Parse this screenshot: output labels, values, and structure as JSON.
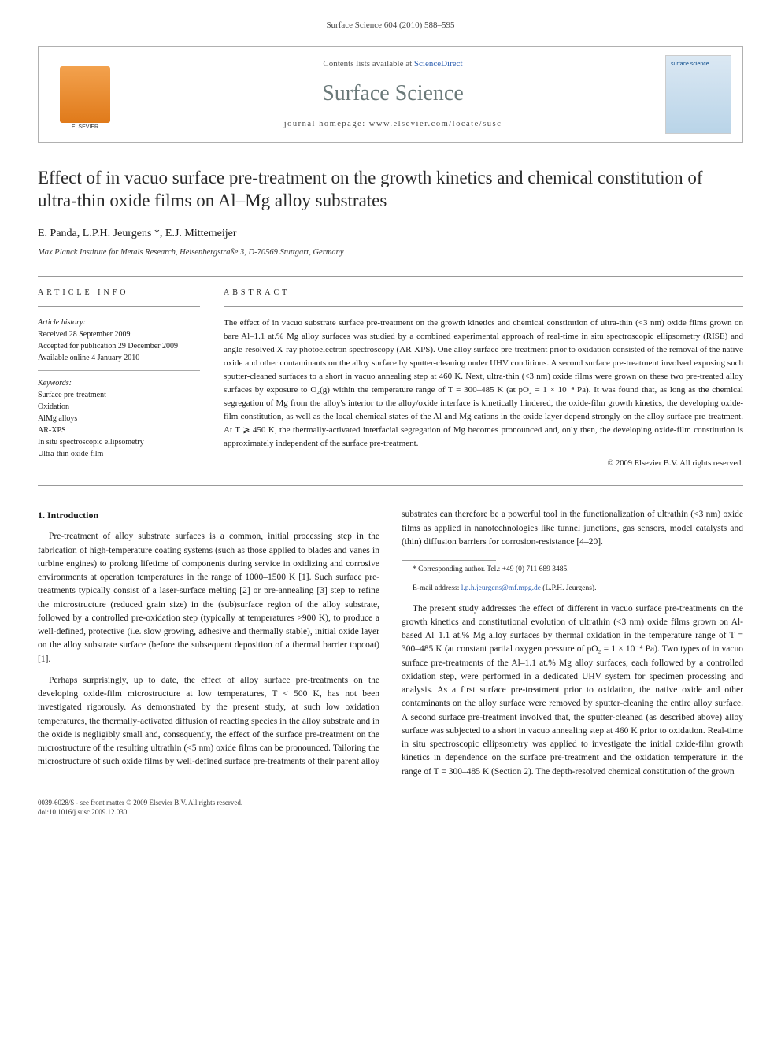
{
  "header": {
    "running_head": "Surface Science 604 (2010) 588–595"
  },
  "banner": {
    "contents_prefix": "Contents lists available at ",
    "contents_link": "ScienceDirect",
    "journal_name": "Surface Science",
    "homepage_label": "journal homepage: www.elsevier.com/locate/susc"
  },
  "article": {
    "title": "Effect of in vacuo surface pre-treatment on the growth kinetics and chemical constitution of ultra-thin oxide films on Al–Mg alloy substrates",
    "authors": "E. Panda, L.P.H. Jeurgens *, E.J. Mittemeijer",
    "affiliation": "Max Planck Institute for Metals Research, Heisenbergstraße 3, D-70569 Stuttgart, Germany"
  },
  "info": {
    "heading": "ARTICLE INFO",
    "history_label": "Article history:",
    "received": "Received 28 September 2009",
    "accepted": "Accepted for publication 29 December 2009",
    "online": "Available online 4 January 2010",
    "keywords_label": "Keywords:",
    "keywords": [
      "Surface pre-treatment",
      "Oxidation",
      "AlMg alloys",
      "AR-XPS",
      "In situ spectroscopic ellipsometry",
      "Ultra-thin oxide film"
    ]
  },
  "abstract": {
    "heading": "ABSTRACT",
    "text": "The effect of in vacuo substrate surface pre-treatment on the growth kinetics and chemical constitution of ultra-thin (<3 nm) oxide films grown on bare Al–1.1 at.% Mg alloy surfaces was studied by a combined experimental approach of real-time in situ spectroscopic ellipsometry (RISE) and angle-resolved X-ray photoelectron spectroscopy (AR-XPS). One alloy surface pre-treatment prior to oxidation consisted of the removal of the native oxide and other contaminants on the alloy surface by sputter-cleaning under UHV conditions. A second surface pre-treatment involved exposing such sputter-cleaned surfaces to a short in vacuo annealing step at 460 K. Next, ultra-thin (<3 nm) oxide films were grown on these two pre-treated alloy surfaces by exposure to O₂(g) within the temperature range of T = 300–485 K (at pO₂ = 1 × 10⁻⁴ Pa). It was found that, as long as the chemical segregation of Mg from the alloy's interior to the alloy/oxide interface is kinetically hindered, the oxide-film growth kinetics, the developing oxide-film constitution, as well as the local chemical states of the Al and Mg cations in the oxide layer depend strongly on the alloy surface pre-treatment. At T ⩾ 450 K, the thermally-activated interfacial segregation of Mg becomes pronounced and, only then, the developing oxide-film constitution is approximately independent of the surface pre-treatment.",
    "copyright": "© 2009 Elsevier B.V. All rights reserved."
  },
  "body": {
    "section1_head": "1. Introduction",
    "p1": "Pre-treatment of alloy substrate surfaces is a common, initial processing step in the fabrication of high-temperature coating systems (such as those applied to blades and vanes in turbine engines) to prolong lifetime of components during service in oxidizing and corrosive environments at operation temperatures in the range of 1000–1500 K [1]. Such surface pre-treatments typically consist of a laser-surface melting [2] or pre-annealing [3] step to refine the microstructure (reduced grain size) in the (sub)surface region of the alloy substrate, followed by a controlled pre-oxidation step (typically at temperatures >900 K), to produce a well-defined, protective (i.e. slow growing, adhesive and thermally stable), initial oxide layer on the alloy substrate surface (before the subsequent deposition of a thermal barrier topcoat) [1].",
    "p2": "Perhaps surprisingly, up to date, the effect of alloy surface pre-treatments on the developing oxide-film microstructure at low temperatures, T < 500 K, has not been investigated rigorously. As demonstrated by the present study, at such low oxidation temperatures, the thermally-activated diffusion of reacting species in the alloy substrate and in the oxide is negligibly small and, consequently, the effect of the surface pre-treatment on the microstructure of the resulting ultrathin (<5 nm) oxide films can be pronounced. Tailoring the microstructure of such oxide films by well-defined surface pre-treatments of their parent alloy substrates can therefore be a powerful tool in the functionalization of ultrathin (<3 nm) oxide films as applied in nanotechnologies like tunnel junctions, gas sensors, model catalysts and (thin) diffusion barriers for corrosion-resistance [4–20].",
    "p3": "The present study addresses the effect of different in vacuo surface pre-treatments on the growth kinetics and constitutional evolution of ultrathin (<3 nm) oxide films grown on Al-based Al–1.1 at.% Mg alloy surfaces by thermal oxidation in the temperature range of T = 300–485 K (at constant partial oxygen pressure of pO₂ = 1 × 10⁻⁴ Pa). Two types of in vacuo surface pre-treatments of the Al–1.1 at.% Mg alloy surfaces, each followed by a controlled oxidation step, were performed in a dedicated UHV system for specimen processing and analysis. As a first surface pre-treatment prior to oxidation, the native oxide and other contaminants on the alloy surface were removed by sputter-cleaning the entire alloy surface. A second surface pre-treatment involved that, the sputter-cleaned (as described above) alloy surface was subjected to a short in vacuo annealing step at 460 K prior to oxidation. Real-time in situ spectroscopic ellipsometry was applied to investigate the initial oxide-film growth kinetics in dependence on the surface pre-treatment and the oxidation temperature in the range of T = 300–485 K (Section 2). The depth-resolved chemical constitution of the grown"
  },
  "footnotes": {
    "corr": "* Corresponding author. Tel.: +49 (0) 711 689 3485.",
    "email_label": "E-mail address: ",
    "email": "l.p.h.jeurgens@mf.mpg.de",
    "email_suffix": " (L.P.H. Jeurgens)."
  },
  "footer": {
    "issn_line": "0039-6028/$ - see front matter © 2009 Elsevier B.V. All rights reserved.",
    "doi": "doi:10.1016/j.susc.2009.12.030"
  },
  "colors": {
    "link": "#2a5db0",
    "journal_name": "#6b7a7a",
    "rule": "#999999"
  }
}
